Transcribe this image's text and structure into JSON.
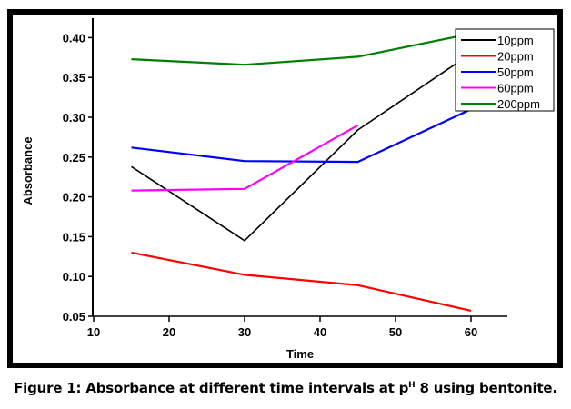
{
  "chart_data": {
    "type": "line",
    "title": "",
    "xlabel": "Time",
    "ylabel": "Absorbance",
    "xlim": [
      10,
      65
    ],
    "ylim": [
      0.05,
      0.42
    ],
    "xticks": [
      10,
      20,
      30,
      40,
      50,
      60
    ],
    "xtick_labels": [
      "10",
      "20",
      "30",
      "40",
      "50",
      "60"
    ],
    "yticks": [
      0.05,
      0.1,
      0.15,
      0.2,
      0.25,
      0.3,
      0.35,
      0.4
    ],
    "ytick_labels": [
      "0.05",
      "0.10",
      "0.15",
      "0.20",
      "0.25",
      "0.30",
      "0.35",
      "0.40"
    ],
    "grid": false,
    "legend_position": "top-right",
    "series": [
      {
        "name": "10ppm",
        "color": "#000000",
        "x": [
          15,
          30,
          45,
          60
        ],
        "y": [
          0.238,
          0.145,
          0.284,
          0.38
        ]
      },
      {
        "name": "20ppm",
        "color": "#ff0000",
        "x": [
          15,
          30,
          45,
          60
        ],
        "y": [
          0.13,
          0.102,
          0.089,
          0.057
        ]
      },
      {
        "name": "50ppm",
        "color": "#0000ff",
        "x": [
          15,
          30,
          45,
          60
        ],
        "y": [
          0.262,
          0.245,
          0.244,
          0.31
        ]
      },
      {
        "name": "60ppm",
        "color": "#ff00ff",
        "x": [
          15,
          30,
          45
        ],
        "y": [
          0.208,
          0.21,
          0.29
        ]
      },
      {
        "name": "200ppm",
        "color": "#008000",
        "x": [
          15,
          30,
          45,
          60
        ],
        "y": [
          0.373,
          0.366,
          0.376,
          0.405
        ]
      }
    ]
  },
  "caption": {
    "prefix": "Figure 1: Absorbance at different time intervals at p",
    "superscript": "H",
    "suffix": " 8 using bentonite."
  }
}
